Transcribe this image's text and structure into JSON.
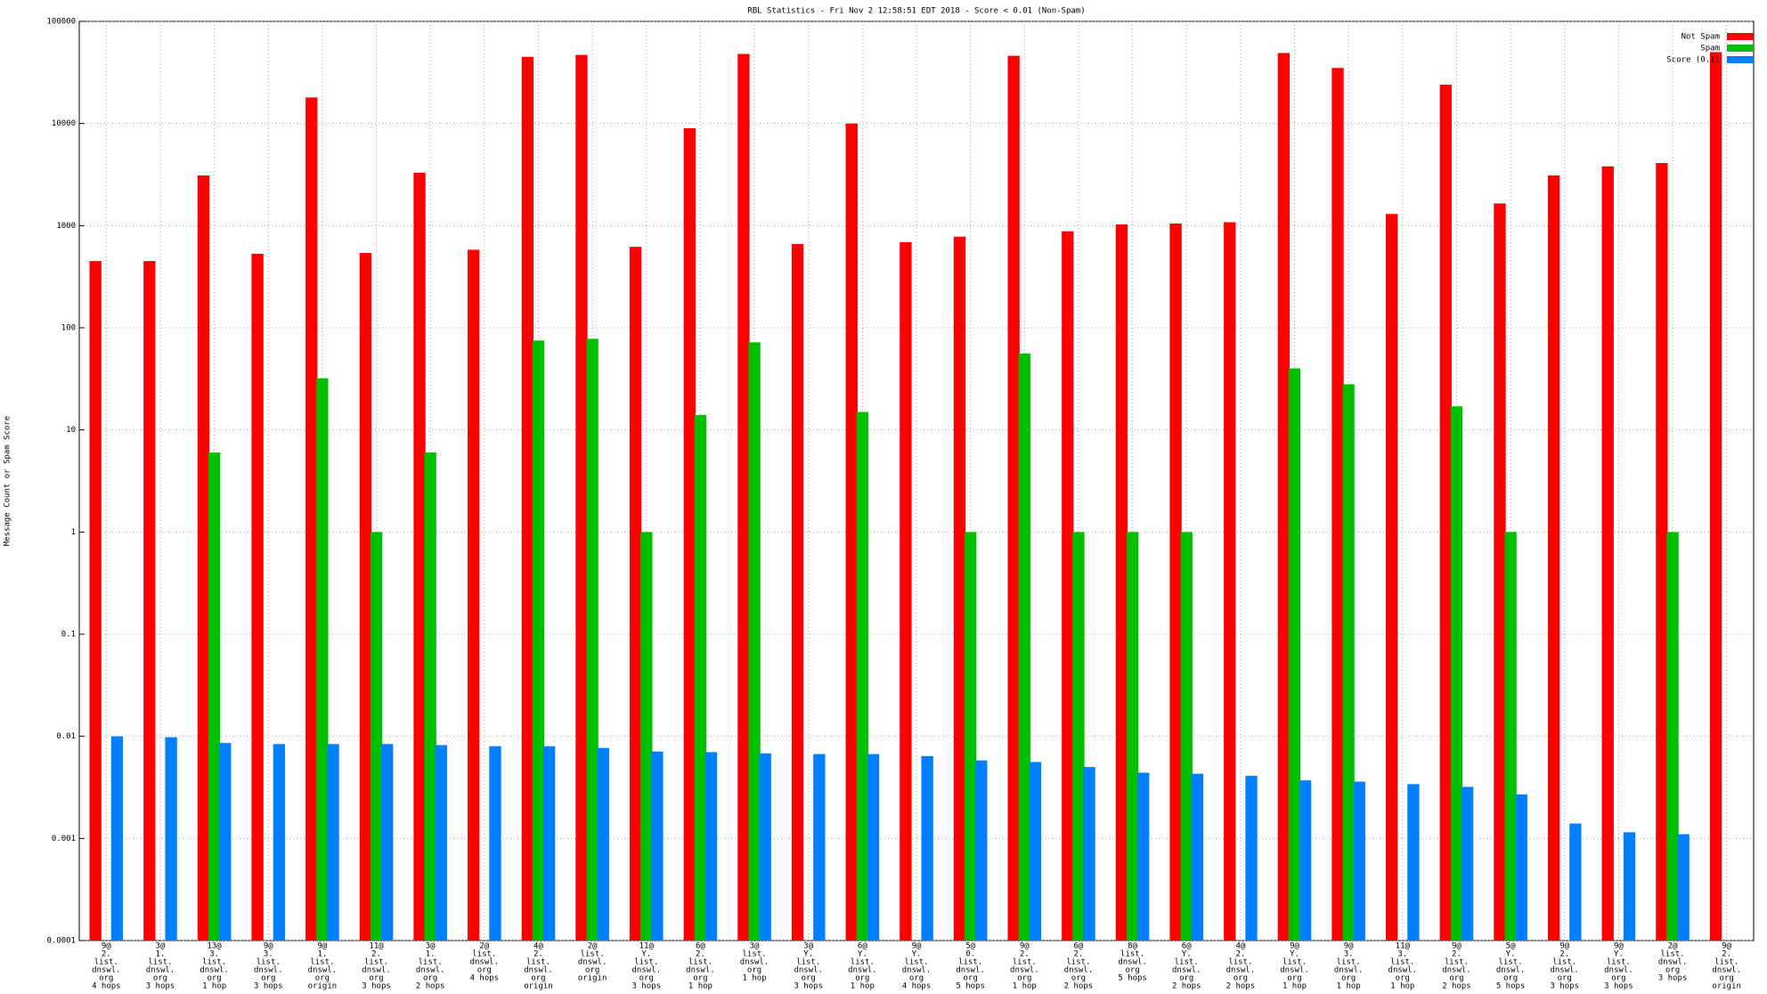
{
  "chart_data": {
    "type": "bar",
    "title": "RBL Statistics - Fri Nov  2 12:58:51 EDT 2018 - Score < 0.01 (Non-Spam)",
    "y_label": "Message Count or Spam Score",
    "yscale": "log",
    "grid": true,
    "legend": "upper right",
    "ylim": [
      0.0001,
      100000
    ],
    "yticks": [
      0.0001,
      0.001,
      0.01,
      0.1,
      1,
      10,
      100,
      1000,
      10000,
      100000
    ],
    "categories": [
      [
        "9@",
        "2.",
        "list.",
        "dnswl.",
        "org",
        "4 hops"
      ],
      [
        "3@",
        "1.",
        "list.",
        "dnswl.",
        "org",
        "3 hops"
      ],
      [
        "13@",
        "3.",
        "list.",
        "dnswl.",
        "org",
        "1 hop"
      ],
      [
        "9@",
        "3.",
        "list.",
        "dnswl.",
        "org",
        "3 hops"
      ],
      [
        "9@",
        "1.",
        "list.",
        "dnswl.",
        "org",
        "origin"
      ],
      [
        "11@",
        "2.",
        "list.",
        "dnswl.",
        "org",
        "3 hops"
      ],
      [
        "3@",
        "1.",
        "list.",
        "dnswl.",
        "org",
        "2 hops"
      ],
      [
        "2@",
        "list.",
        "dnswl.",
        "org",
        "4 hops"
      ],
      [
        "4@",
        "2.",
        "list.",
        "dnswl.",
        "org",
        "origin"
      ],
      [
        "2@",
        "list.",
        "dnswl.",
        "org",
        "origin"
      ],
      [
        "11@",
        "Y.",
        "list.",
        "dnswl.",
        "org",
        "3 hops"
      ],
      [
        "6@",
        "2.",
        "list.",
        "dnswl.",
        "org",
        "1 hop"
      ],
      [
        "3@",
        "list.",
        "dnswl.",
        "org",
        "1 hop"
      ],
      [
        "3@",
        "Y.",
        "list.",
        "dnswl.",
        "org",
        "3 hops"
      ],
      [
        "6@",
        "Y.",
        "list.",
        "dnswl.",
        "org",
        "1 hop"
      ],
      [
        "9@",
        "Y.",
        "list.",
        "dnswl.",
        "org",
        "4 hops"
      ],
      [
        "5@",
        "0.",
        "list.",
        "dnswl.",
        "org",
        "5 hops"
      ],
      [
        "9@",
        "2.",
        "list.",
        "dnswl.",
        "org",
        "1 hop"
      ],
      [
        "6@",
        "2.",
        "list.",
        "dnswl.",
        "org",
        "2 hops"
      ],
      [
        "8@",
        "list.",
        "dnswl.",
        "org",
        "5 hops"
      ],
      [
        "6@",
        "Y.",
        "list.",
        "dnswl.",
        "org",
        "2 hops"
      ],
      [
        "4@",
        "2.",
        "list.",
        "dnswl.",
        "org",
        "2 hops"
      ],
      [
        "9@",
        "Y.",
        "list.",
        "dnswl.",
        "org",
        "1 hop"
      ],
      [
        "9@",
        "3.",
        "list.",
        "dnswl.",
        "org",
        "1 hop"
      ],
      [
        "11@",
        "3.",
        "list.",
        "dnswl.",
        "org",
        "1 hop"
      ],
      [
        "9@",
        "2.",
        "list.",
        "dnswl.",
        "org",
        "2 hops"
      ],
      [
        "5@",
        "Y.",
        "list.",
        "dnswl.",
        "org",
        "5 hops"
      ],
      [
        "9@",
        "2.",
        "list.",
        "dnswl.",
        "org",
        "3 hops"
      ],
      [
        "9@",
        "Y.",
        "list.",
        "dnswl.",
        "org",
        "3 hops"
      ],
      [
        "2@",
        "list.",
        "dnswl.",
        "org",
        "3 hops"
      ],
      [
        "9@",
        "2.",
        "list.",
        "dnswl.",
        "org",
        "origin"
      ]
    ],
    "series": [
      {
        "name": "Not Spam",
        "color": "#ff0000",
        "values": [
          450,
          450,
          3100,
          530,
          18000,
          540,
          3300,
          580,
          45000,
          47000,
          620,
          9000,
          48000,
          660,
          10000,
          690,
          780,
          46000,
          880,
          1030,
          1050,
          1080,
          49000,
          35000,
          1300,
          24000,
          1650,
          3100,
          3800,
          4100,
          50000
        ]
      },
      {
        "name": "Spam",
        "color": "#00c000",
        "values": [
          null,
          null,
          6,
          null,
          32,
          1,
          6,
          null,
          75,
          78,
          1,
          14,
          72,
          null,
          15,
          null,
          1,
          56,
          1,
          1,
          1,
          null,
          40,
          28,
          null,
          17,
          1,
          null,
          null,
          1,
          null
        ]
      },
      {
        "name": "Score (0.1)",
        "color": "#0080ff",
        "values": [
          0.01,
          0.0098,
          0.0086,
          0.0084,
          0.0084,
          0.0084,
          0.0082,
          0.008,
          0.008,
          0.0077,
          0.0071,
          0.007,
          0.0068,
          0.0067,
          0.0067,
          0.0064,
          0.0058,
          0.0056,
          0.005,
          0.0044,
          0.0043,
          0.0041,
          0.0037,
          0.0036,
          0.0034,
          0.0032,
          0.0027,
          0.0014,
          0.00115,
          0.0011,
          null
        ]
      }
    ]
  }
}
